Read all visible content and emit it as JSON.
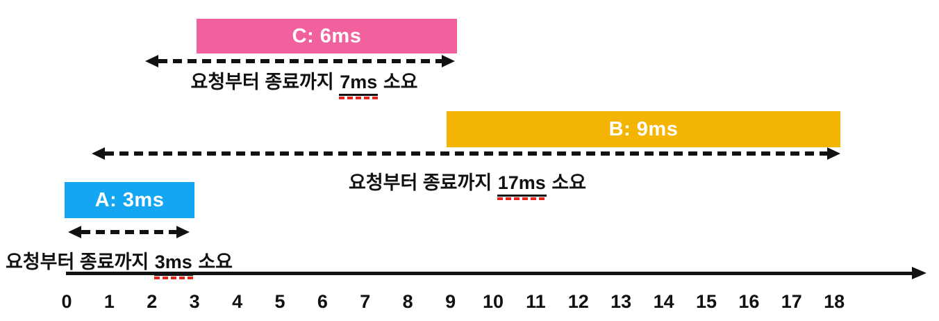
{
  "caption_text": {
    "prefix": "요청부터 종료까지",
    "suffix": "소요"
  },
  "tasks": [
    {
      "name": "A",
      "bar_label": "A: 3ms",
      "burst_ms": 3,
      "turnaround_label": "3ms",
      "color": "#14A6F2"
    },
    {
      "name": "B",
      "bar_label": "B: 9ms",
      "burst_ms": 9,
      "turnaround_label": "17ms",
      "color": "#F4B403"
    },
    {
      "name": "C",
      "bar_label": "C: 6ms",
      "burst_ms": 6,
      "turnaround_label": "7ms",
      "color": "#F0619E"
    }
  ],
  "axis": {
    "ticks": [
      "0",
      "1",
      "2",
      "3",
      "4",
      "5",
      "6",
      "7",
      "8",
      "9",
      "10",
      "11",
      "12",
      "13",
      "14",
      "15",
      "16",
      "17",
      "18"
    ]
  },
  "colors": {
    "task_a": "#14A6F2",
    "task_b": "#F4B403",
    "task_c": "#F0619E",
    "ink": "#111111",
    "spellcheck_red": "#E3271E",
    "bar_text": "#FFFFFF"
  },
  "chart_data": {
    "type": "gantt-timeline",
    "title": "",
    "xlabel": "",
    "axis_range": [
      0,
      18
    ],
    "axis_ticks": [
      0,
      1,
      2,
      3,
      4,
      5,
      6,
      7,
      8,
      9,
      10,
      11,
      12,
      13,
      14,
      15,
      16,
      17,
      18
    ],
    "series": [
      {
        "name": "A",
        "execution_start": 0,
        "execution_end": 3,
        "burst_ms": 3,
        "request_time": 0,
        "finish_time": 3,
        "turnaround_ms": 3
      },
      {
        "name": "B",
        "execution_start": 9,
        "execution_end": 18,
        "burst_ms": 9,
        "request_time": 1,
        "finish_time": 18,
        "turnaround_ms": 17
      },
      {
        "name": "C",
        "execution_start": 3,
        "execution_end": 9,
        "burst_ms": 6,
        "request_time": 2,
        "finish_time": 9,
        "turnaround_ms": 7
      }
    ],
    "caption_pattern": "요청부터 종료까지 {turnaround}ms 소요"
  }
}
